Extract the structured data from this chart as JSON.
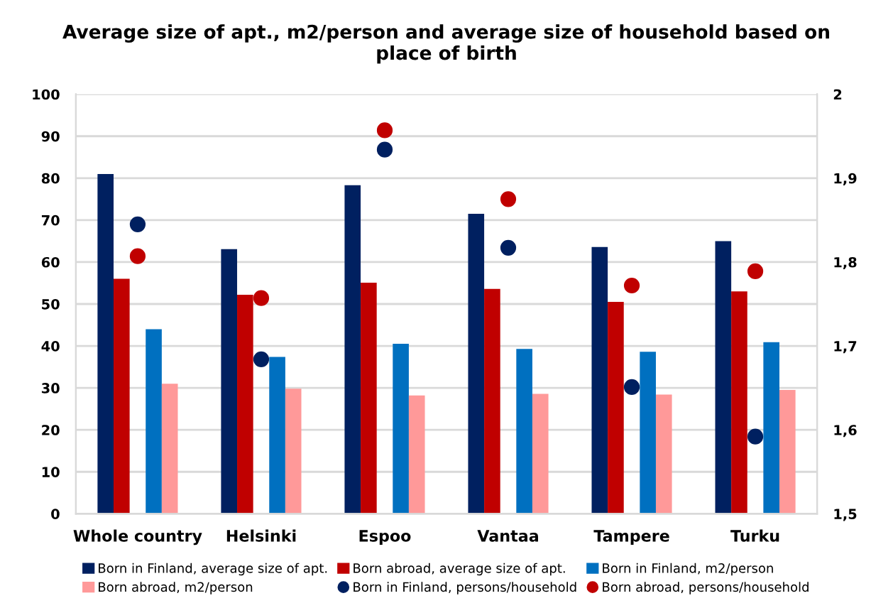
{
  "chart_data": {
    "type": "bar",
    "title": "Average size of apt., m2/person and average size of household based on\nplace of birth",
    "categories": [
      "Whole country",
      "Helsinki",
      "Espoo",
      "Vantaa",
      "Tampere",
      "Turku"
    ],
    "series": [
      {
        "name": "Born in Finland, average size of apt.",
        "color": "#002060",
        "values": [
          81,
          63.1,
          78.3,
          71.5,
          63.6,
          65.0
        ]
      },
      {
        "name": "Born abroad, average size of apt.",
        "color": "#c00000",
        "values": [
          56,
          52.2,
          55.1,
          53.6,
          50.5,
          53.0
        ]
      },
      {
        "name": "Born in Finland, m2/person",
        "color": "#0070c0",
        "values": [
          44,
          37.4,
          40.5,
          39.3,
          38.6,
          40.9
        ]
      },
      {
        "name": "Born abroad, m2/person",
        "color": "#ff9999",
        "values": [
          31,
          29.8,
          28.2,
          28.6,
          28.4,
          29.5
        ]
      },
      {
        "name": "Born in Finland, persons/household",
        "type": "scatter",
        "axis": "y2",
        "color": "#002060",
        "values": [
          1.845,
          1.684,
          1.934,
          1.817,
          1.651,
          1.592
        ]
      },
      {
        "name": "Born abroad, persons/household",
        "type": "scatter",
        "axis": "y2",
        "color": "#c00000",
        "values": [
          1.807,
          1.757,
          1.957,
          1.875,
          1.772,
          1.789
        ]
      }
    ],
    "ylim": [
      0,
      100
    ],
    "yticks": [
      0,
      10,
      20,
      30,
      40,
      50,
      60,
      70,
      80,
      90,
      100
    ],
    "y2lim": [
      1.5,
      2
    ],
    "y2ticks": [
      {
        "value": 1.5,
        "label": "1,5"
      },
      {
        "value": 1.6,
        "label": "1,6"
      },
      {
        "value": 1.7,
        "label": "1,7"
      },
      {
        "value": 1.8,
        "label": "1,8"
      },
      {
        "value": 1.9,
        "label": "1,9"
      },
      {
        "value": 2,
        "label": "2"
      }
    ],
    "grid": "y",
    "legend": "bottom",
    "marker": "circle"
  }
}
